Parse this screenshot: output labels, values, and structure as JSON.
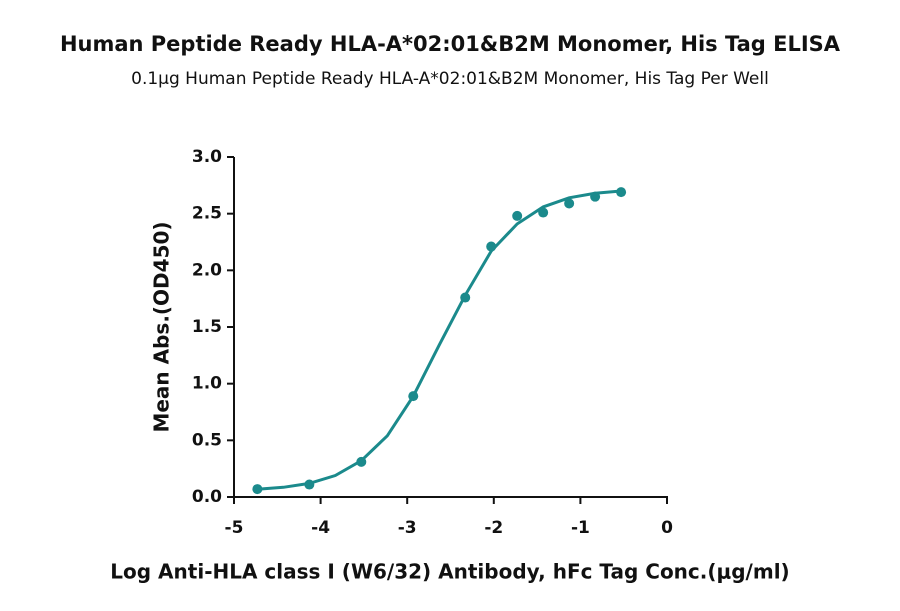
{
  "chart_data": {
    "type": "scatter",
    "title": "Human Peptide Ready HLA-A*02:01&B2M Monomer, His Tag ELISA",
    "subtitle": "0.1μg Human Peptide Ready HLA-A*02:01&B2M Monomer, His Tag Per Well",
    "x_label": "Log Anti-HLA class I (W6/32) Antibody, hFc Tag Conc.(μg/ml)",
    "y_label": "Mean Abs.(OD450)",
    "x": [
      -4.73,
      -4.13,
      -3.53,
      -2.93,
      -2.33,
      -2.03,
      -1.73,
      -1.43,
      -1.13,
      -0.83,
      -0.53
    ],
    "values": [
      0.07,
      0.11,
      0.31,
      0.89,
      1.76,
      2.21,
      2.48,
      2.51,
      2.59,
      2.65,
      2.69
    ],
    "color": "#1b8a8c",
    "fit": {
      "x": [
        -4.73,
        -4.43,
        -4.13,
        -3.83,
        -3.53,
        -3.23,
        -2.93,
        -2.63,
        -2.33,
        -2.03,
        -1.73,
        -1.43,
        -1.13,
        -0.83,
        -0.53
      ],
      "values": [
        0.068,
        0.086,
        0.12,
        0.19,
        0.32,
        0.54,
        0.89,
        1.34,
        1.78,
        2.17,
        2.41,
        2.56,
        2.64,
        2.68,
        2.7
      ]
    },
    "xlim": [
      -5,
      0
    ],
    "xticks": [
      -5,
      -4,
      -3,
      -2,
      -1,
      0
    ],
    "ylim": [
      0,
      3
    ],
    "yticks": [
      {
        "value": 0,
        "label": "0.0"
      },
      0.5,
      {
        "value": 1,
        "label": "1.0"
      },
      1.5,
      {
        "value": 2,
        "label": "2.0"
      },
      2.5,
      {
        "value": 3,
        "label": "3.0"
      }
    ]
  }
}
